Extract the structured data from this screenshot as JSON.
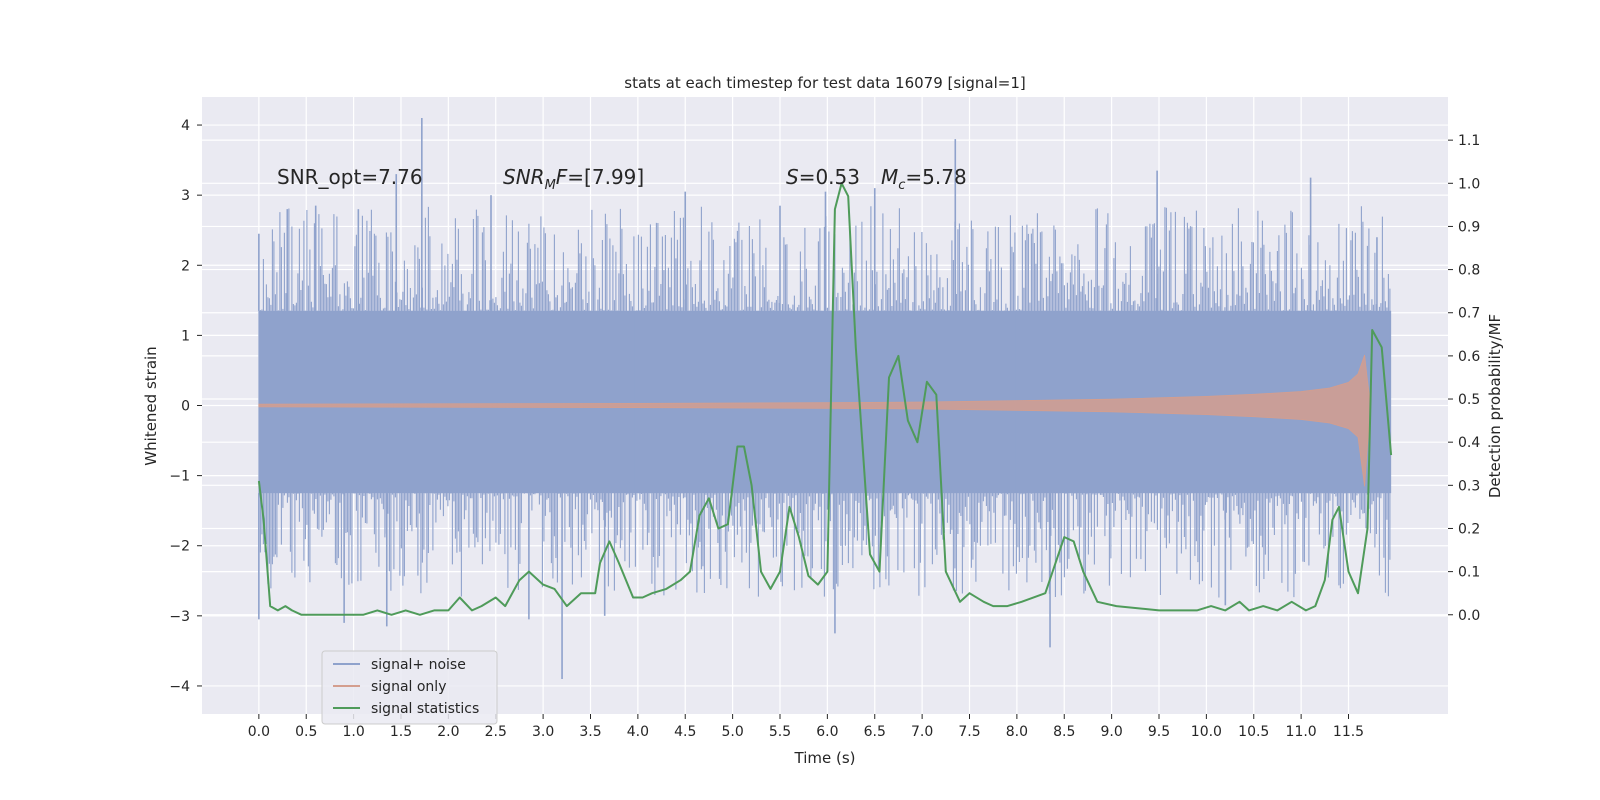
{
  "chart_data": {
    "type": "line",
    "title": "stats at each timestep for test data 16079 [signal=1]",
    "xlabel": "Time (s)",
    "ylabel": "Whitened strain",
    "ylabel_right": "Detection probability/MF",
    "xlim": [
      -0.6,
      12.55
    ],
    "ylim": [
      -4.4,
      4.4
    ],
    "ylim_right": [
      -0.23,
      1.2
    ],
    "x_ticks": [
      "0.0",
      "0.5",
      "1.0",
      "1.5",
      "2.0",
      "2.5",
      "3.0",
      "3.5",
      "4.0",
      "4.5",
      "5.0",
      "5.5",
      "6.0",
      "6.5",
      "7.0",
      "7.5",
      "8.0",
      "8.5",
      "9.0",
      "9.5",
      "10.0",
      "10.5",
      "11.0",
      "11.5"
    ],
    "y_ticks": [
      "4",
      "3",
      "2",
      "1",
      "0",
      "−1",
      "−2",
      "−3",
      "−4"
    ],
    "y_ticks_right": [
      "1.1",
      "1.0",
      "0.9",
      "0.8",
      "0.7",
      "0.6",
      "0.5",
      "0.4",
      "0.3",
      "0.2",
      "0.1",
      "0.0"
    ],
    "grid": true,
    "legend_position": "lower-left",
    "annotations": {
      "snr_opt": "SNR_opt=7.76",
      "snr_mf_sym": "SNR",
      "snr_mf_sub": "M",
      "snr_mf_f": "F",
      "snr_mf_val": "=[7.99]",
      "s_sym": "S",
      "s_val": "=0.53",
      "mc_sym": "M",
      "mc_sub": "c",
      "mc_val": "=5.78"
    },
    "series": [
      {
        "name": "signal+ noise",
        "color": "#8fa2cc",
        "axis": "left",
        "description_kind": "noise band",
        "x_range": [
          0.0,
          11.95
        ],
        "core_band": [
          -1.25,
          1.35
        ],
        "spikes": [
          {
            "x": 0.0,
            "y": 2.45
          },
          {
            "x": 0.0,
            "y": -3.05
          },
          {
            "x": 0.3,
            "y": 2.8
          },
          {
            "x": 0.6,
            "y": 2.85
          },
          {
            "x": 0.9,
            "y": -3.1
          },
          {
            "x": 1.05,
            "y": 2.8
          },
          {
            "x": 1.35,
            "y": -3.15
          },
          {
            "x": 1.45,
            "y": 3.3
          },
          {
            "x": 1.72,
            "y": 4.1
          },
          {
            "x": 2.45,
            "y": 3.0
          },
          {
            "x": 2.85,
            "y": -3.05
          },
          {
            "x": 3.2,
            "y": -3.9
          },
          {
            "x": 3.65,
            "y": -3.0
          },
          {
            "x": 4.5,
            "y": 3.05
          },
          {
            "x": 5.5,
            "y": 2.85
          },
          {
            "x": 5.98,
            "y": 3.05
          },
          {
            "x": 6.08,
            "y": -3.25
          },
          {
            "x": 6.5,
            "y": 3.1
          },
          {
            "x": 7.35,
            "y": 3.8
          },
          {
            "x": 8.35,
            "y": -3.45
          },
          {
            "x": 9.48,
            "y": 3.35
          },
          {
            "x": 10.2,
            "y": -2.85
          },
          {
            "x": 11.1,
            "y": 3.25
          },
          {
            "x": 11.8,
            "y": 2.4
          }
        ]
      },
      {
        "name": "signal only",
        "color": "#d49e8e",
        "axis": "left",
        "envelope": [
          {
            "x": 0.0,
            "y": 0.02
          },
          {
            "x": 4.0,
            "y": 0.03
          },
          {
            "x": 6.0,
            "y": 0.04
          },
          {
            "x": 7.0,
            "y": 0.05
          },
          {
            "x": 8.0,
            "y": 0.07
          },
          {
            "x": 9.0,
            "y": 0.09
          },
          {
            "x": 10.0,
            "y": 0.13
          },
          {
            "x": 10.5,
            "y": 0.16
          },
          {
            "x": 11.0,
            "y": 0.2
          },
          {
            "x": 11.3,
            "y": 0.25
          },
          {
            "x": 11.5,
            "y": 0.33
          },
          {
            "x": 11.6,
            "y": 0.45
          },
          {
            "x": 11.67,
            "y": 0.72
          },
          {
            "x": 11.7,
            "y": 0.35
          },
          {
            "x": 11.73,
            "y": 0.05
          }
        ]
      },
      {
        "name": "signal statistics",
        "color": "#4f9b5a",
        "axis": "right",
        "x": [
          0.0,
          0.05,
          0.12,
          0.2,
          0.28,
          0.35,
          0.45,
          0.55,
          0.7,
          0.9,
          1.1,
          1.25,
          1.4,
          1.55,
          1.7,
          1.85,
          2.0,
          2.12,
          2.25,
          2.35,
          2.5,
          2.6,
          2.75,
          2.85,
          3.0,
          3.12,
          3.25,
          3.4,
          3.55,
          3.6,
          3.7,
          3.8,
          3.95,
          4.05,
          4.15,
          4.3,
          4.45,
          4.55,
          4.65,
          4.75,
          4.85,
          4.95,
          5.05,
          5.12,
          5.2,
          5.3,
          5.4,
          5.5,
          5.6,
          5.7,
          5.8,
          5.9,
          6.0,
          6.08,
          6.15,
          6.22,
          6.3,
          6.45,
          6.55,
          6.65,
          6.75,
          6.85,
          6.95,
          7.05,
          7.15,
          7.25,
          7.4,
          7.5,
          7.65,
          7.75,
          7.9,
          8.05,
          8.3,
          8.5,
          8.6,
          8.7,
          8.85,
          9.05,
          9.5,
          9.9,
          10.05,
          10.2,
          10.35,
          10.45,
          10.6,
          10.75,
          10.9,
          11.05,
          11.15,
          11.25,
          11.33,
          11.4,
          11.5,
          11.6,
          11.7,
          11.75,
          11.85,
          11.95
        ],
        "y": [
          0.31,
          0.22,
          0.02,
          0.01,
          0.02,
          0.01,
          0.0,
          0.0,
          0.0,
          0.0,
          0.0,
          0.01,
          0.0,
          0.01,
          0.0,
          0.01,
          0.01,
          0.04,
          0.01,
          0.02,
          0.04,
          0.02,
          0.08,
          0.1,
          0.07,
          0.06,
          0.02,
          0.05,
          0.05,
          0.12,
          0.17,
          0.12,
          0.04,
          0.04,
          0.05,
          0.06,
          0.08,
          0.1,
          0.23,
          0.27,
          0.2,
          0.21,
          0.39,
          0.39,
          0.3,
          0.1,
          0.06,
          0.1,
          0.25,
          0.18,
          0.09,
          0.07,
          0.1,
          0.94,
          1.0,
          0.97,
          0.62,
          0.14,
          0.1,
          0.55,
          0.6,
          0.45,
          0.4,
          0.54,
          0.51,
          0.1,
          0.03,
          0.05,
          0.03,
          0.02,
          0.02,
          0.03,
          0.05,
          0.18,
          0.17,
          0.1,
          0.03,
          0.02,
          0.01,
          0.01,
          0.02,
          0.01,
          0.03,
          0.01,
          0.02,
          0.01,
          0.03,
          0.01,
          0.02,
          0.08,
          0.22,
          0.25,
          0.1,
          0.05,
          0.2,
          0.66,
          0.62,
          0.37
        ]
      }
    ]
  }
}
